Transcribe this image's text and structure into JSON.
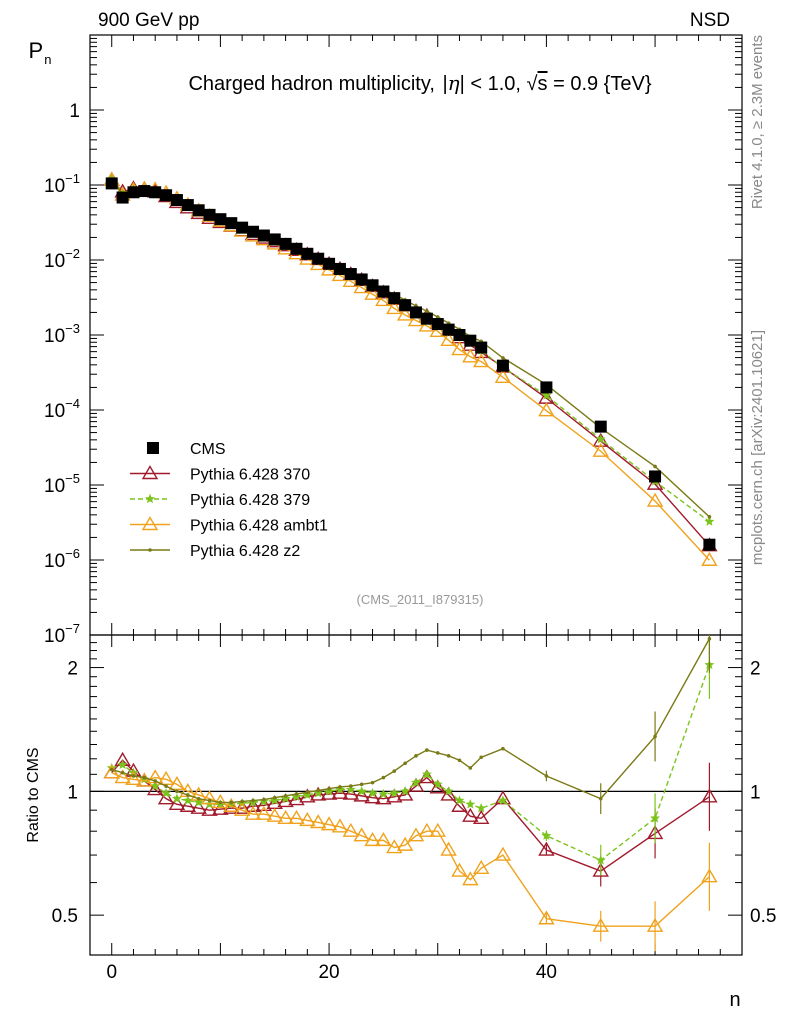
{
  "header": {
    "left": "900 GeV pp",
    "right": "NSD"
  },
  "side_labels": {
    "rivet": "Rivet 4.1.0, ≥ 2.3M events",
    "mcplots": "mcplots.cern.ch [arXiv:2401.10621]"
  },
  "colors": {
    "CMS": "#000000",
    "370": "#a01b2c",
    "379": "#7cc41c",
    "ambt1": "#f0a21c",
    "z2": "#7a7a16"
  },
  "chart_data": [
    {
      "type": "scatter",
      "title": "Charged hadron multiplicity, |η| < 1.0, √s = 0.9 {TeV}",
      "title_parts": {
        "prefix": "Charged hadron multiplicity, ",
        "eta": "η",
        "mid": "| < 1.0, ",
        "sqrt": "√",
        "s": "s",
        "suffix": " = 0.9 {TeV}"
      },
      "ylabel": "P",
      "ylabel_sub": "n",
      "yscale": "log",
      "ylim": [
        1e-07,
        10
      ],
      "xlim": [
        -2,
        58
      ],
      "ytick_labels": [
        {
          "v": 1e-07,
          "base": "10",
          "exp": "−7"
        },
        {
          "v": 1e-06,
          "base": "10",
          "exp": "−6"
        },
        {
          "v": 1e-05,
          "base": "10",
          "exp": "−5"
        },
        {
          "v": 0.0001,
          "base": "10",
          "exp": "−4"
        },
        {
          "v": 0.001,
          "base": "10",
          "exp": "−3"
        },
        {
          "v": 0.01,
          "base": "10",
          "exp": "−2"
        },
        {
          "v": 0.1,
          "base": "10",
          "exp": "−1"
        },
        {
          "v": 1,
          "base": "1",
          "exp": ""
        }
      ],
      "watermark": "(CMS_2011_I879315)",
      "x": [
        0,
        1,
        2,
        3,
        4,
        5,
        6,
        7,
        8,
        9,
        10,
        11,
        12,
        13,
        14,
        15,
        16,
        17,
        18,
        19,
        20,
        21,
        22,
        23,
        24,
        25,
        26,
        27,
        28,
        29,
        30,
        31,
        32,
        33,
        34,
        36,
        40,
        45,
        50,
        55
      ],
      "series": [
        {
          "name": "CMS",
          "key": "CMS",
          "marker": "square",
          "values": [
            0.105,
            0.068,
            0.08,
            0.083,
            0.08,
            0.073,
            0.063,
            0.054,
            0.046,
            0.04,
            0.035,
            0.031,
            0.027,
            0.0238,
            0.0212,
            0.0188,
            0.0164,
            0.0141,
            0.0121,
            0.0104,
            0.0089,
            0.0076,
            0.0065,
            0.0055,
            0.0046,
            0.0038,
            0.0031,
            0.0025,
            0.002,
            0.00165,
            0.0014,
            0.00118,
            0.001,
            0.00084,
            0.00068,
            0.00039,
            0.0002,
            6e-05,
            1.3e-05,
            1.6e-06
          ]
        },
        {
          "name": "Pythia 6.428 370",
          "key": "370",
          "marker": "triangle-open",
          "dash": "",
          "ratio": [
            1.11,
            1.19,
            1.12,
            1.06,
            1.01,
            0.96,
            0.93,
            0.92,
            0.91,
            0.9,
            0.905,
            0.91,
            0.91,
            0.92,
            0.925,
            0.935,
            0.945,
            0.955,
            0.97,
            0.98,
            0.985,
            0.99,
            0.985,
            0.975,
            0.965,
            0.96,
            0.97,
            0.98,
            1.03,
            1.08,
            1.02,
            0.98,
            0.92,
            0.87,
            0.86,
            0.96,
            0.72,
            0.64,
            0.79,
            0.97
          ]
        },
        {
          "name": "Pythia 6.428 379",
          "key": "379",
          "marker": "star",
          "dash": "5,3",
          "ratio": [
            1.14,
            1.16,
            1.11,
            1.07,
            1.03,
            0.99,
            0.96,
            0.95,
            0.94,
            0.93,
            0.93,
            0.93,
            0.935,
            0.94,
            0.945,
            0.95,
            0.96,
            0.97,
            0.98,
            0.99,
            1.0,
            1.01,
            1.01,
            1.0,
            0.99,
            0.985,
            0.99,
            1.0,
            1.05,
            1.1,
            1.04,
            1.0,
            0.95,
            0.93,
            0.91,
            0.95,
            0.78,
            0.68,
            0.86,
            2.03
          ]
        },
        {
          "name": "Pythia 6.428 ambt1",
          "key": "ambt1",
          "marker": "triangle-open",
          "dash": "",
          "ratio": [
            1.11,
            1.08,
            1.07,
            1.06,
            1.08,
            1.07,
            1.04,
            1.0,
            0.98,
            0.96,
            0.94,
            0.92,
            0.9,
            0.88,
            0.88,
            0.87,
            0.86,
            0.86,
            0.85,
            0.84,
            0.83,
            0.82,
            0.8,
            0.78,
            0.76,
            0.76,
            0.73,
            0.74,
            0.78,
            0.8,
            0.8,
            0.72,
            0.64,
            0.61,
            0.65,
            0.7,
            0.49,
            0.47,
            0.47,
            0.62
          ]
        },
        {
          "name": "Pythia 6.428 z2",
          "key": "z2",
          "marker": "dot",
          "dash": "",
          "ratio": [
            1.13,
            1.11,
            1.09,
            1.08,
            1.06,
            1.03,
            1.0,
            0.98,
            0.96,
            0.95,
            0.94,
            0.94,
            0.945,
            0.95,
            0.955,
            0.965,
            0.975,
            0.985,
            0.995,
            1.005,
            1.015,
            1.025,
            1.03,
            1.04,
            1.05,
            1.08,
            1.12,
            1.17,
            1.22,
            1.26,
            1.24,
            1.22,
            1.19,
            1.14,
            1.21,
            1.27,
            1.09,
            0.96,
            1.36,
            2.35
          ]
        }
      ]
    },
    {
      "type": "line",
      "ylabel": "Ratio to CMS",
      "xlabel": "n",
      "yscale": "log",
      "ylim": [
        0.4,
        2.4
      ],
      "yticks": [
        0.5,
        1,
        2
      ],
      "ytick_labels": [
        "0.5",
        "1",
        "2"
      ],
      "xticks": [
        0,
        20,
        40
      ],
      "xtick_labels": [
        "0",
        "20",
        "40"
      ],
      "reference_line": 1
    }
  ]
}
